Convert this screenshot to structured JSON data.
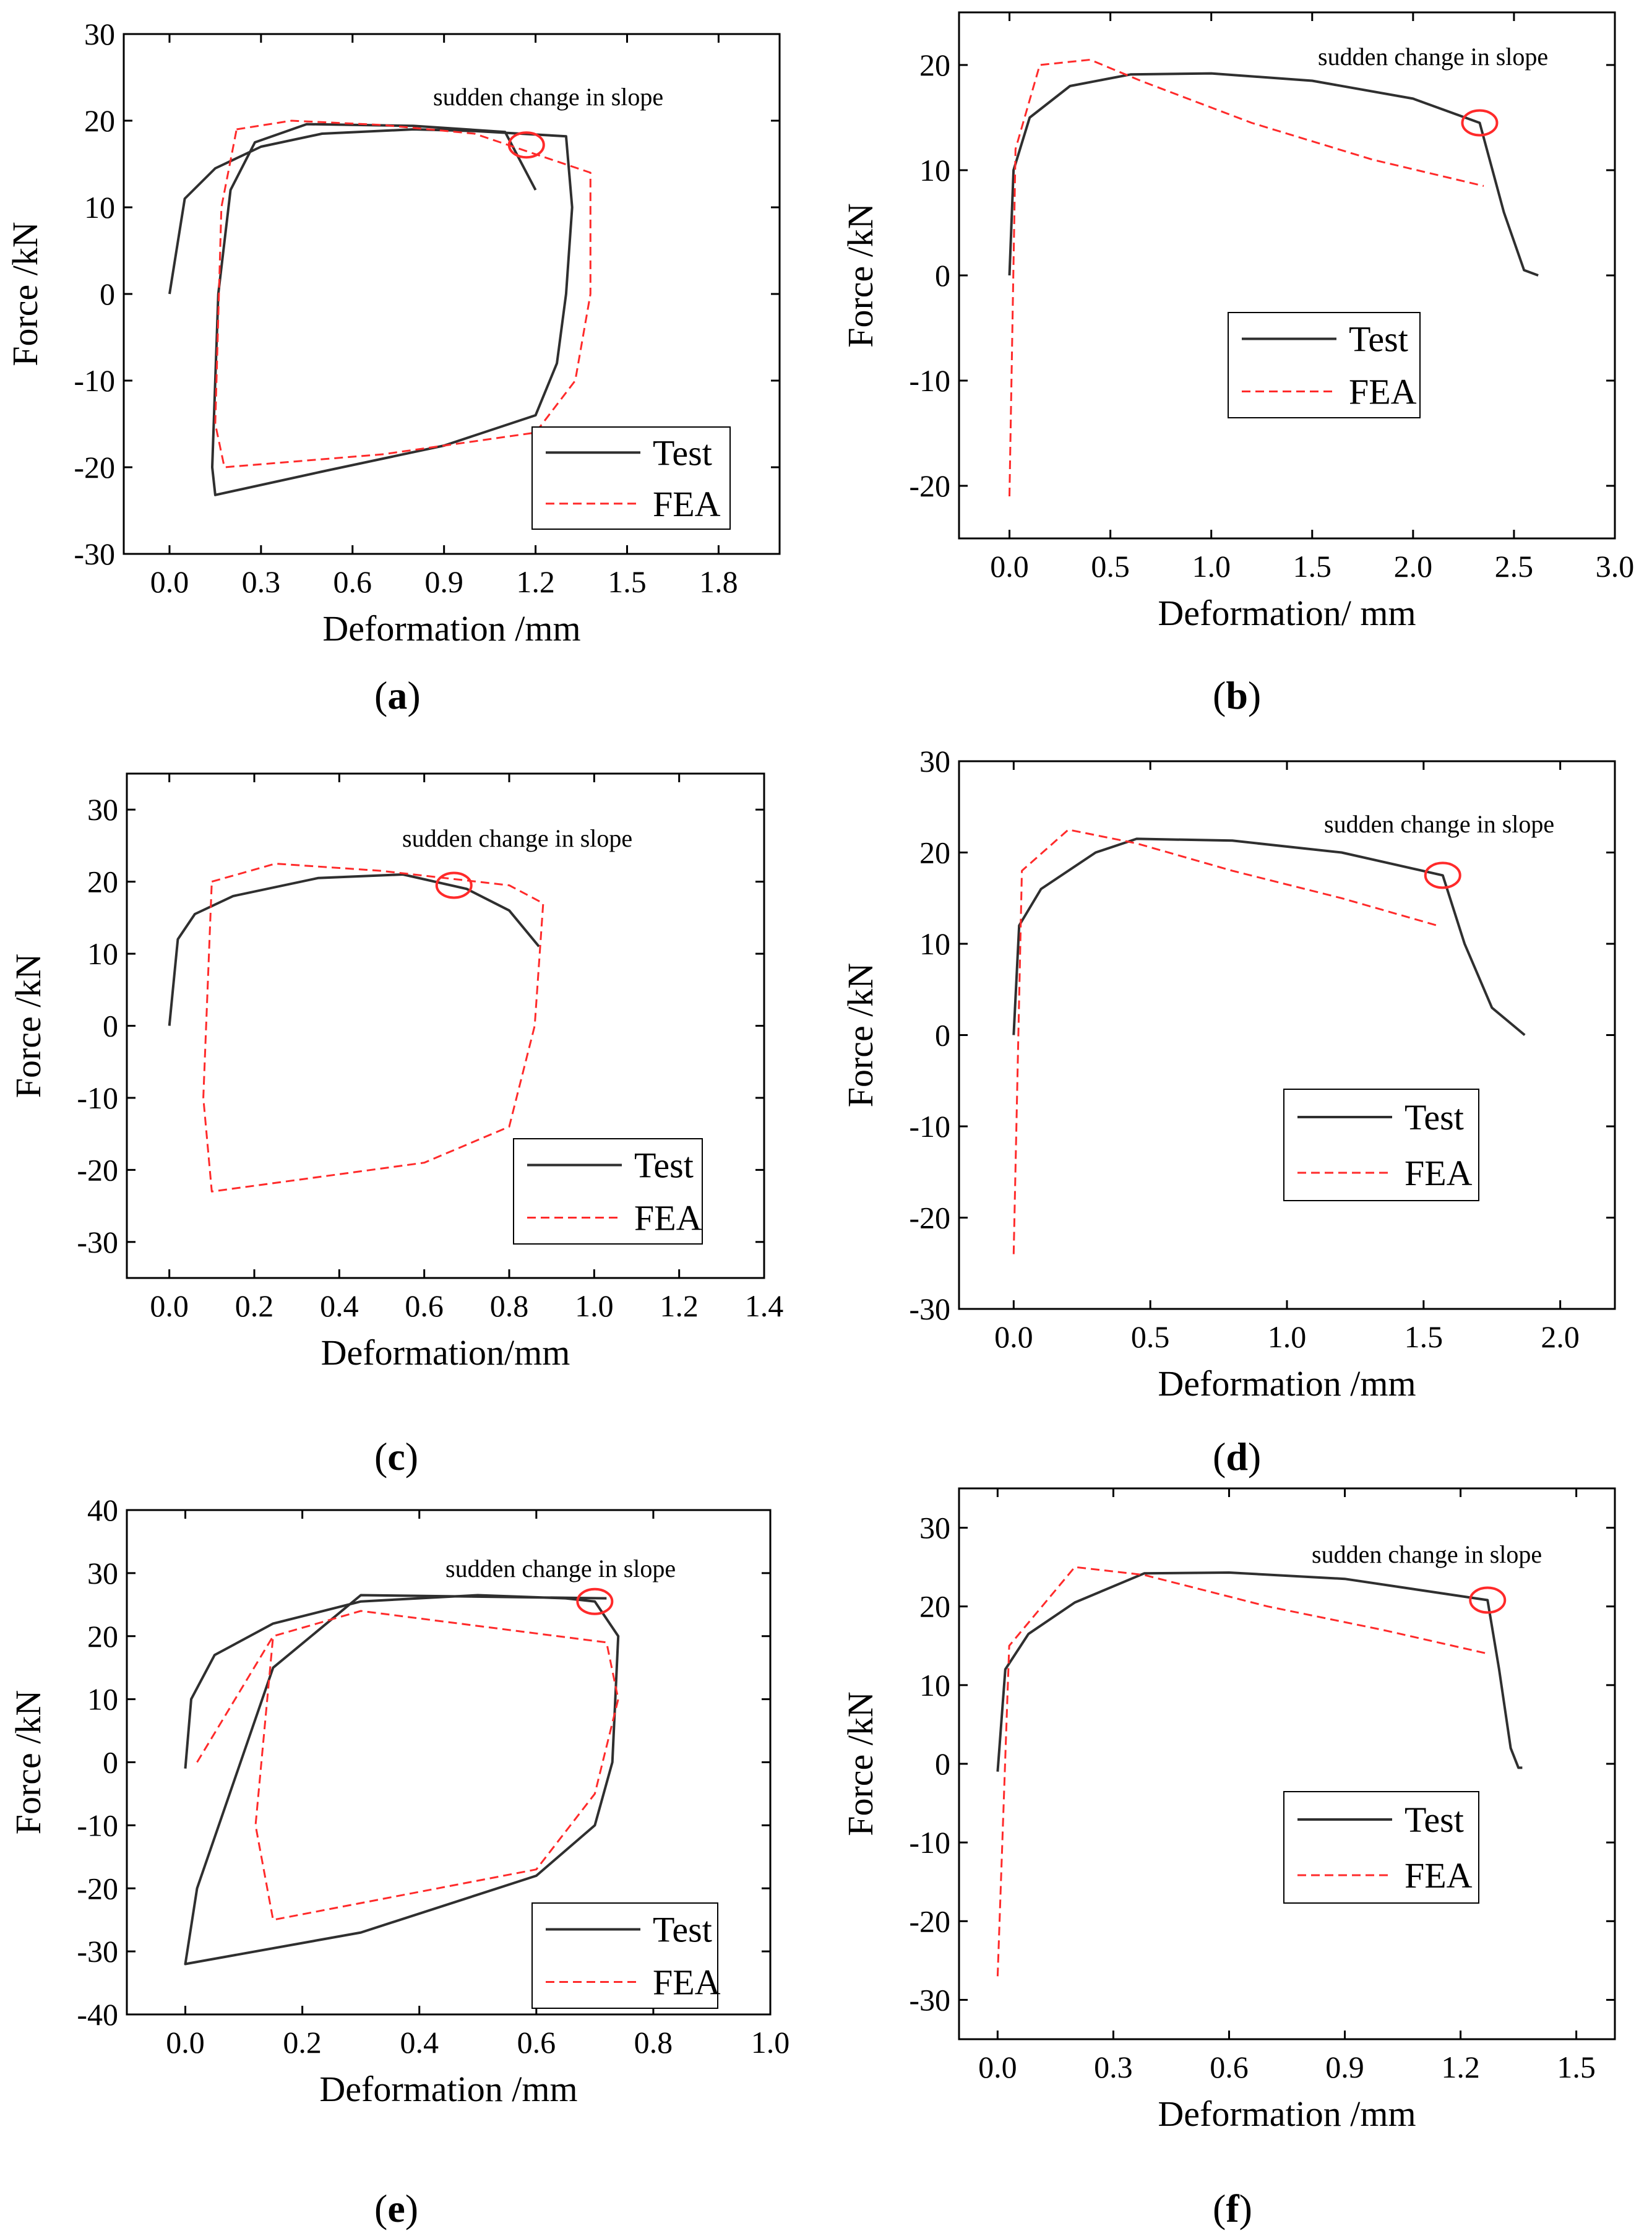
{
  "legend_labels": [
    "Test",
    "FEA"
  ],
  "colors": {
    "test": "#2f2f2f",
    "fea": "#ff2a2a",
    "marker": "#ff2a2a"
  },
  "chart_data": [
    {
      "id": "a",
      "panel_label": "a",
      "type": "line",
      "xlabel": "Deformation /mm",
      "ylabel": "Force /kN",
      "xlim": [
        -0.15,
        2.0
      ],
      "ylim": [
        -30,
        30
      ],
      "xticks": [
        0.0,
        0.3,
        0.6,
        0.9,
        1.2,
        1.5,
        1.8
      ],
      "yticks": [
        -30,
        -20,
        -10,
        0,
        10,
        20,
        30
      ],
      "xtick_labels": [
        "0.0",
        "0.3",
        "0.6",
        "0.9",
        "1.2",
        "1.5",
        "1.8"
      ],
      "ytick_labels": [
        "-30",
        "-20",
        "-10",
        "0",
        "10",
        "20",
        "30"
      ],
      "annotation": "sudden change in slope",
      "marker": {
        "x": 1.17,
        "y": 17.2
      },
      "legend": "lower-right",
      "series": [
        {
          "name": "Test",
          "x": [
            0.0,
            0.05,
            0.15,
            0.3,
            0.5,
            0.8,
            1.0,
            1.3,
            1.32,
            1.3,
            1.27,
            1.2,
            0.9,
            0.5,
            0.15,
            0.14,
            0.16,
            0.2,
            0.28,
            0.45,
            0.8,
            1.1,
            1.2
          ],
          "y": [
            0.0,
            11.0,
            14.5,
            17.0,
            18.5,
            19.0,
            18.8,
            18.2,
            10.0,
            0.0,
            -8.0,
            -14.0,
            -17.5,
            -20.5,
            -23.2,
            -20.0,
            0.0,
            12.0,
            17.5,
            19.6,
            19.4,
            18.7,
            12.0
          ]
        },
        {
          "name": "FEA",
          "x": [
            0.22,
            0.4,
            0.7,
            1.0,
            1.38,
            1.38,
            1.33,
            1.2,
            0.7,
            0.18,
            0.15,
            0.17,
            0.22
          ],
          "y": [
            19.0,
            20.0,
            19.5,
            18.5,
            14.0,
            0.0,
            -10.0,
            -16.0,
            -18.5,
            -20.0,
            -15.0,
            10.0,
            19.0
          ]
        }
      ]
    },
    {
      "id": "b",
      "panel_label": "b",
      "type": "line",
      "xlabel": "Deformation/ mm",
      "ylabel": "Force /kN",
      "xlim": [
        -0.25,
        3.0
      ],
      "ylim": [
        -25,
        25
      ],
      "xticks": [
        0.0,
        0.5,
        1.0,
        1.5,
        2.0,
        2.5,
        3.0
      ],
      "yticks": [
        -20,
        -10,
        0,
        10,
        20
      ],
      "xtick_labels": [
        "0.0",
        "0.5",
        "1.0",
        "1.5",
        "2.0",
        "2.5",
        "3.0"
      ],
      "ytick_labels": [
        "-20",
        "-10",
        "0",
        "10",
        "20"
      ],
      "annotation": "sudden change in slope",
      "marker": {
        "x": 2.33,
        "y": 14.5
      },
      "legend": "middle-left",
      "series": [
        {
          "name": "Test",
          "x": [
            0.0,
            0.02,
            0.1,
            0.3,
            0.6,
            1.0,
            1.5,
            2.0,
            2.33,
            2.45,
            2.55,
            2.62
          ],
          "y": [
            0.0,
            10.0,
            15.0,
            18.0,
            19.1,
            19.2,
            18.5,
            16.8,
            14.5,
            6.0,
            0.5,
            0.0
          ]
        },
        {
          "name": "FEA",
          "x": [
            0.0,
            0.03,
            0.15,
            0.4,
            0.65,
            1.2,
            1.8,
            2.35
          ],
          "y": [
            -21.0,
            12.0,
            20.0,
            20.5,
            18.5,
            14.5,
            11.0,
            8.5
          ]
        }
      ]
    },
    {
      "id": "c",
      "panel_label": "c",
      "type": "line",
      "xlabel": "Deformation/mm",
      "ylabel": "Force /kN",
      "xlim": [
        -0.1,
        1.4
      ],
      "ylim": [
        -35,
        35
      ],
      "xticks": [
        0.0,
        0.2,
        0.4,
        0.6,
        0.8,
        1.0,
        1.2,
        1.4
      ],
      "yticks": [
        -30,
        -20,
        -10,
        0,
        10,
        20,
        30
      ],
      "xtick_labels": [
        "0.0",
        "0.2",
        "0.4",
        "0.6",
        "0.8",
        "1.0",
        "1.2",
        "1.4"
      ],
      "ytick_labels": [
        "-30",
        "-20",
        "-10",
        "0",
        "10",
        "20",
        "30"
      ],
      "annotation": "sudden change in slope",
      "marker": {
        "x": 0.67,
        "y": 19.5
      },
      "legend": "lower-right",
      "series": [
        {
          "name": "Test",
          "x": [
            0.0,
            0.02,
            0.06,
            0.15,
            0.35,
            0.55,
            0.7,
            0.8,
            0.87
          ],
          "y": [
            0.0,
            12.0,
            15.5,
            18.0,
            20.5,
            21.0,
            19.0,
            16.0,
            11.0
          ]
        },
        {
          "name": "FEA",
          "x": [
            0.1,
            0.25,
            0.5,
            0.8,
            0.88,
            0.86,
            0.8,
            0.6,
            0.1,
            0.08,
            0.1
          ],
          "y": [
            20.0,
            22.5,
            21.5,
            19.5,
            17.0,
            0.0,
            -14.0,
            -19.0,
            -23.0,
            -10.0,
            20.0
          ]
        }
      ]
    },
    {
      "id": "d",
      "panel_label": "d",
      "type": "line",
      "xlabel": "Deformation /mm",
      "ylabel": "Force /kN",
      "xlim": [
        -0.2,
        2.2
      ],
      "ylim": [
        -30,
        30
      ],
      "xticks": [
        0.0,
        0.5,
        1.0,
        1.5,
        2.0
      ],
      "yticks": [
        -30,
        -20,
        -10,
        0,
        10,
        20,
        30
      ],
      "xtick_labels": [
        "0.0",
        "0.5",
        "1.0",
        "1.5",
        "2.0"
      ],
      "ytick_labels": [
        "-30",
        "-20",
        "-10",
        "0",
        "10",
        "20",
        "30"
      ],
      "annotation": "sudden change in slope",
      "marker": {
        "x": 1.57,
        "y": 17.5
      },
      "legend": "middle-right",
      "series": [
        {
          "name": "Test",
          "x": [
            0.0,
            0.02,
            0.1,
            0.3,
            0.45,
            0.8,
            1.2,
            1.57,
            1.65,
            1.75,
            1.87
          ],
          "y": [
            0.0,
            12.0,
            16.0,
            20.0,
            21.5,
            21.3,
            20.0,
            17.5,
            10.0,
            3.0,
            0.0
          ]
        },
        {
          "name": "FEA",
          "x": [
            0.0,
            0.03,
            0.2,
            0.45,
            0.8,
            1.2,
            1.55
          ],
          "y": [
            -24.0,
            18.0,
            22.5,
            21.0,
            18.0,
            15.0,
            12.0
          ]
        }
      ]
    },
    {
      "id": "e",
      "panel_label": "e",
      "type": "line",
      "xlabel": "Deformation /mm",
      "ylabel": "Force /kN",
      "xlim": [
        -0.1,
        1.0
      ],
      "ylim": [
        -40,
        40
      ],
      "xticks": [
        0.0,
        0.2,
        0.4,
        0.6,
        0.8,
        1.0
      ],
      "yticks": [
        -40,
        -30,
        -20,
        -10,
        0,
        10,
        20,
        30,
        40
      ],
      "xtick_labels": [
        "0.0",
        "0.2",
        "0.4",
        "0.6",
        "0.8",
        "1.0"
      ],
      "ytick_labels": [
        "-40",
        "-30",
        "-20",
        "-10",
        "0",
        "10",
        "20",
        "30",
        "40"
      ],
      "annotation": "sudden change in slope",
      "marker": {
        "x": 0.7,
        "y": 25.5
      },
      "legend": "lower-right",
      "series": [
        {
          "name": "Test",
          "x": [
            0.0,
            0.01,
            0.05,
            0.15,
            0.3,
            0.5,
            0.65,
            0.7,
            0.74,
            0.73,
            0.7,
            0.6,
            0.3,
            0.0,
            0.02,
            0.15,
            0.3,
            0.72
          ],
          "y": [
            -1.0,
            10.0,
            17.0,
            22.0,
            25.5,
            26.5,
            26.0,
            25.5,
            20.0,
            0.0,
            -10.0,
            -18.0,
            -27.0,
            -32.0,
            -20.0,
            15.0,
            26.5,
            26.0
          ]
        },
        {
          "name": "FEA",
          "x": [
            0.02,
            0.15,
            0.3,
            0.72,
            0.74,
            0.7,
            0.6,
            0.15,
            0.12,
            0.15
          ],
          "y": [
            0.0,
            20.0,
            24.0,
            19.0,
            10.0,
            -5.0,
            -17.0,
            -25.0,
            -10.0,
            20.0
          ]
        }
      ]
    },
    {
      "id": "f",
      "panel_label": "f",
      "type": "line",
      "xlabel": "Deformation /mm",
      "ylabel": "Force /kN",
      "xlim": [
        -0.1,
        1.6
      ],
      "ylim": [
        -35,
        35
      ],
      "xticks": [
        0.0,
        0.3,
        0.6,
        0.9,
        1.2,
        1.5
      ],
      "yticks": [
        -30,
        -20,
        -10,
        0,
        10,
        20,
        30
      ],
      "xtick_labels": [
        "0.0",
        "0.3",
        "0.6",
        "0.9",
        "1.2",
        "1.5"
      ],
      "ytick_labels": [
        "-30",
        "-20",
        "-10",
        "0",
        "10",
        "20",
        "30"
      ],
      "annotation": "sudden change in slope",
      "marker": {
        "x": 1.27,
        "y": 20.8
      },
      "legend": "middle-left",
      "series": [
        {
          "name": "Test",
          "x": [
            0.0,
            0.02,
            0.08,
            0.2,
            0.38,
            0.6,
            0.9,
            1.27,
            1.3,
            1.33,
            1.35,
            1.36
          ],
          "y": [
            -1.0,
            12.0,
            16.5,
            20.5,
            24.2,
            24.3,
            23.5,
            20.8,
            12.0,
            2.0,
            -0.5,
            -0.5
          ]
        },
        {
          "name": "FEA",
          "x": [
            0.0,
            0.03,
            0.2,
            0.38,
            0.7,
            1.0,
            1.27
          ],
          "y": [
            -27.0,
            15.0,
            25.0,
            24.0,
            20.0,
            17.0,
            14.0
          ]
        }
      ]
    }
  ]
}
